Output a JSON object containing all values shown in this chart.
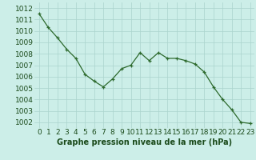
{
  "hours": [
    0,
    1,
    2,
    3,
    4,
    5,
    6,
    7,
    8,
    9,
    10,
    11,
    12,
    13,
    14,
    15,
    16,
    17,
    18,
    19,
    20,
    21,
    22,
    23
  ],
  "pressure": [
    1011.5,
    1010.3,
    1009.4,
    1008.4,
    1007.6,
    1006.2,
    1005.6,
    1005.1,
    1005.8,
    1006.7,
    1007.0,
    1008.1,
    1007.4,
    1008.1,
    1007.6,
    1007.6,
    1007.4,
    1007.1,
    1006.4,
    1005.1,
    1004.0,
    1003.1,
    1002.0,
    1001.9
  ],
  "line_color": "#2d6a2d",
  "marker": "+",
  "bg_color": "#cceee8",
  "grid_color": "#aad4cc",
  "xlabel": "Graphe pression niveau de la mer (hPa)",
  "ylabel_ticks": [
    1002,
    1003,
    1004,
    1005,
    1006,
    1007,
    1008,
    1009,
    1010,
    1011,
    1012
  ],
  "ylim": [
    1001.5,
    1012.5
  ],
  "xlim": [
    -0.5,
    23.5
  ],
  "title_color": "#1a4a1a",
  "xlabel_fontsize": 7,
  "tick_fontsize": 6.5,
  "markersize": 3,
  "linewidth": 0.9
}
